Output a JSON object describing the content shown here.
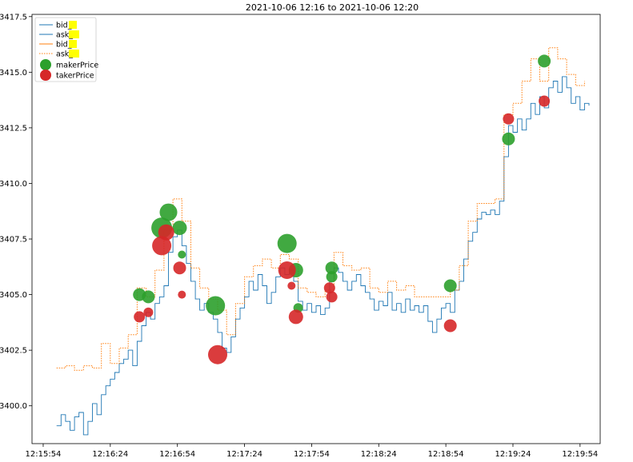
{
  "chart_data": {
    "type": "line",
    "title": "2021-10-06 12:16 to 2021-10-06 12:20",
    "xlabel": "",
    "ylabel": "",
    "ylim": [
      3398.3,
      3417.6
    ],
    "xlim": [
      "12:15:49",
      "12:20:03"
    ],
    "y_ticks": [
      "3400.0",
      "3402.5",
      "3405.0",
      "3407.5",
      "3410.0",
      "3412.5",
      "3415.0",
      "3417.5"
    ],
    "x_ticks": [
      "12:15:54",
      "12:16:24",
      "12:16:54",
      "12:17:24",
      "12:17:54",
      "12:18:24",
      "12:18:54",
      "12:19:24",
      "12:19:54"
    ],
    "grid": false,
    "legend_position": "top-left",
    "legend": [
      {
        "label": "bid_",
        "kind": "line",
        "color": "#1f77b4"
      },
      {
        "label": "ask_",
        "kind": "line",
        "color": "#1f77b4"
      },
      {
        "label": "bid_",
        "kind": "line",
        "color": "#ff7f0e"
      },
      {
        "label": "ask_",
        "kind": "line",
        "color": "#ff7f0e"
      },
      {
        "label": "makerPrice",
        "kind": "marker",
        "color": "#2ca02c"
      },
      {
        "label": "takerPrice",
        "kind": "marker",
        "color": "#d62728"
      }
    ],
    "series": [
      {
        "name": "bid_",
        "style": "solid",
        "color": "#1f77b4",
        "points": [
          [
            "12:16:00",
            3399.1
          ],
          [
            "12:16:02",
            3399.6
          ],
          [
            "12:16:04",
            3399.3
          ],
          [
            "12:16:06",
            3398.9
          ],
          [
            "12:16:08",
            3399.5
          ],
          [
            "12:16:10",
            3399.7
          ],
          [
            "12:16:12",
            3398.7
          ],
          [
            "12:16:14",
            3399.3
          ],
          [
            "12:16:16",
            3400.1
          ],
          [
            "12:16:18",
            3399.6
          ],
          [
            "12:16:20",
            3400.5
          ],
          [
            "12:16:22",
            3400.9
          ],
          [
            "12:16:24",
            3401.2
          ],
          [
            "12:16:26",
            3401.5
          ],
          [
            "12:16:28",
            3401.9
          ],
          [
            "12:16:30",
            3402.1
          ],
          [
            "12:16:32",
            3402.5
          ],
          [
            "12:16:34",
            3401.8
          ],
          [
            "12:16:36",
            3402.9
          ],
          [
            "12:16:38",
            3403.6
          ],
          [
            "12:16:40",
            3404.2
          ],
          [
            "12:16:42",
            3403.9
          ],
          [
            "12:16:44",
            3404.6
          ],
          [
            "12:16:46",
            3404.9
          ],
          [
            "12:16:48",
            3405.4
          ],
          [
            "12:16:50",
            3406.9
          ],
          [
            "12:16:52",
            3407.6
          ],
          [
            "12:16:54",
            3407.9
          ],
          [
            "12:16:56",
            3407.2
          ],
          [
            "12:16:58",
            3406.4
          ],
          [
            "12:17:00",
            3405.6
          ],
          [
            "12:17:02",
            3404.8
          ],
          [
            "12:17:04",
            3404.3
          ],
          [
            "12:17:06",
            3404.6
          ],
          [
            "12:17:08",
            3404.2
          ],
          [
            "12:17:10",
            3403.9
          ],
          [
            "12:17:12",
            3403.3
          ],
          [
            "12:17:14",
            3402.6
          ],
          [
            "12:17:16",
            3402.4
          ],
          [
            "12:17:18",
            3403.1
          ],
          [
            "12:17:20",
            3403.9
          ],
          [
            "12:17:22",
            3404.4
          ],
          [
            "12:17:24",
            3404.9
          ],
          [
            "12:17:26",
            3405.6
          ],
          [
            "12:17:28",
            3405.2
          ],
          [
            "12:17:30",
            3405.9
          ],
          [
            "12:17:32",
            3405.4
          ],
          [
            "12:17:34",
            3404.6
          ],
          [
            "12:17:36",
            3405.1
          ],
          [
            "12:17:38",
            3405.8
          ],
          [
            "12:17:40",
            3406.2
          ],
          [
            "12:17:42",
            3405.9
          ],
          [
            "12:17:44",
            3406.1
          ],
          [
            "12:17:46",
            3405.6
          ],
          [
            "12:17:48",
            3404.7
          ],
          [
            "12:17:50",
            3404.3
          ],
          [
            "12:17:52",
            3404.6
          ],
          [
            "12:17:54",
            3404.2
          ],
          [
            "12:17:56",
            3404.5
          ],
          [
            "12:17:58",
            3404.1
          ],
          [
            "12:18:00",
            3404.4
          ],
          [
            "12:18:02",
            3405.6
          ],
          [
            "12:18:04",
            3406.2
          ],
          [
            "12:18:06",
            3406.0
          ],
          [
            "12:18:08",
            3405.6
          ],
          [
            "12:18:10",
            3405.2
          ],
          [
            "12:18:12",
            3405.6
          ],
          [
            "12:18:14",
            3405.9
          ],
          [
            "12:18:16",
            3405.4
          ],
          [
            "12:18:18",
            3405.1
          ],
          [
            "12:18:20",
            3404.8
          ],
          [
            "12:18:22",
            3404.3
          ],
          [
            "12:18:24",
            3404.7
          ],
          [
            "12:18:26",
            3404.5
          ],
          [
            "12:18:28",
            3405.1
          ],
          [
            "12:18:30",
            3404.3
          ],
          [
            "12:18:32",
            3404.6
          ],
          [
            "12:18:34",
            3404.2
          ],
          [
            "12:18:36",
            3404.8
          ],
          [
            "12:18:38",
            3404.3
          ],
          [
            "12:18:40",
            3404.5
          ],
          [
            "12:18:42",
            3404.2
          ],
          [
            "12:18:44",
            3404.5
          ],
          [
            "12:18:46",
            3403.8
          ],
          [
            "12:18:48",
            3403.3
          ],
          [
            "12:18:50",
            3403.9
          ],
          [
            "12:18:52",
            3404.4
          ],
          [
            "12:18:54",
            3404.6
          ],
          [
            "12:18:56",
            3404.2
          ],
          [
            "12:18:58",
            3405.2
          ],
          [
            "12:19:00",
            3405.6
          ],
          [
            "12:19:02",
            3406.6
          ],
          [
            "12:19:04",
            3407.4
          ],
          [
            "12:19:06",
            3407.8
          ],
          [
            "12:19:08",
            3408.4
          ],
          [
            "12:19:10",
            3408.7
          ],
          [
            "12:19:12",
            3408.6
          ],
          [
            "12:19:14",
            3408.8
          ],
          [
            "12:19:16",
            3408.6
          ],
          [
            "12:19:18",
            3409.2
          ],
          [
            "12:19:20",
            3411.2
          ],
          [
            "12:19:22",
            3412.6
          ],
          [
            "12:19:24",
            3412.3
          ],
          [
            "12:19:26",
            3412.9
          ],
          [
            "12:19:28",
            3412.4
          ],
          [
            "12:19:30",
            3412.9
          ],
          [
            "12:19:32",
            3413.6
          ],
          [
            "12:19:34",
            3413.1
          ],
          [
            "12:19:36",
            3413.9
          ],
          [
            "12:19:38",
            3413.4
          ],
          [
            "12:19:40",
            3414.3
          ],
          [
            "12:19:42",
            3414.6
          ],
          [
            "12:19:44",
            3414.1
          ],
          [
            "12:19:46",
            3414.8
          ],
          [
            "12:19:48",
            3414.3
          ],
          [
            "12:19:50",
            3413.6
          ],
          [
            "12:19:52",
            3413.9
          ],
          [
            "12:19:54",
            3413.3
          ],
          [
            "12:19:56",
            3413.6
          ],
          [
            "12:19:58",
            3413.5
          ]
        ]
      },
      {
        "name": "ask_",
        "style": "dotted",
        "color": "#ff7f0e",
        "points": [
          [
            "12:16:00",
            3401.7
          ],
          [
            "12:16:04",
            3401.8
          ],
          [
            "12:16:08",
            3401.6
          ],
          [
            "12:16:12",
            3401.8
          ],
          [
            "12:16:16",
            3401.7
          ],
          [
            "12:16:20",
            3402.8
          ],
          [
            "12:16:24",
            3401.9
          ],
          [
            "12:16:28",
            3402.6
          ],
          [
            "12:16:32",
            3403.2
          ],
          [
            "12:16:36",
            3405.3
          ],
          [
            "12:16:40",
            3404.9
          ],
          [
            "12:16:44",
            3406.1
          ],
          [
            "12:16:48",
            3407.9
          ],
          [
            "12:16:52",
            3409.3
          ],
          [
            "12:16:56",
            3408.3
          ],
          [
            "12:17:00",
            3406.2
          ],
          [
            "12:17:04",
            3405.3
          ],
          [
            "12:17:08",
            3404.8
          ],
          [
            "12:17:12",
            3404.3
          ],
          [
            "12:17:16",
            3403.2
          ],
          [
            "12:17:20",
            3404.6
          ],
          [
            "12:17:24",
            3405.8
          ],
          [
            "12:17:28",
            3406.3
          ],
          [
            "12:17:32",
            3406.6
          ],
          [
            "12:17:36",
            3406.2
          ],
          [
            "12:17:40",
            3406.8
          ],
          [
            "12:17:44",
            3406.6
          ],
          [
            "12:17:48",
            3405.3
          ],
          [
            "12:17:52",
            3405.1
          ],
          [
            "12:17:56",
            3404.9
          ],
          [
            "12:18:00",
            3405.2
          ],
          [
            "12:18:04",
            3406.9
          ],
          [
            "12:18:08",
            3406.3
          ],
          [
            "12:18:12",
            3406.1
          ],
          [
            "12:18:16",
            3406.2
          ],
          [
            "12:18:20",
            3405.3
          ],
          [
            "12:18:24",
            3405.1
          ],
          [
            "12:18:28",
            3405.6
          ],
          [
            "12:18:32",
            3405.2
          ],
          [
            "12:18:36",
            3405.4
          ],
          [
            "12:18:40",
            3404.9
          ],
          [
            "12:18:44",
            3404.9
          ],
          [
            "12:18:48",
            3404.9
          ],
          [
            "12:18:52",
            3404.9
          ],
          [
            "12:18:56",
            3405.2
          ],
          [
            "12:19:00",
            3406.3
          ],
          [
            "12:19:04",
            3408.3
          ],
          [
            "12:19:08",
            3409.1
          ],
          [
            "12:19:12",
            3409.1
          ],
          [
            "12:19:16",
            3409.3
          ],
          [
            "12:19:20",
            3413.1
          ],
          [
            "12:19:24",
            3413.6
          ],
          [
            "12:19:28",
            3414.6
          ],
          [
            "12:19:32",
            3415.6
          ],
          [
            "12:19:36",
            3414.6
          ],
          [
            "12:19:40",
            3416.1
          ],
          [
            "12:19:44",
            3415.6
          ],
          [
            "12:19:48",
            3414.9
          ],
          [
            "12:19:52",
            3414.4
          ],
          [
            "12:19:56",
            3414.6
          ]
        ]
      }
    ],
    "maker_points": [
      {
        "x": "12:16:37",
        "y": 3405.0,
        "size": 8
      },
      {
        "x": "12:16:41",
        "y": 3404.9,
        "size": 8
      },
      {
        "x": "12:16:47",
        "y": 3408.0,
        "size": 13
      },
      {
        "x": "12:16:50",
        "y": 3408.7,
        "size": 11
      },
      {
        "x": "12:16:55",
        "y": 3408.0,
        "size": 9
      },
      {
        "x": "12:16:56",
        "y": 3406.8,
        "size": 5
      },
      {
        "x": "12:17:11",
        "y": 3404.5,
        "size": 12
      },
      {
        "x": "12:17:43",
        "y": 3407.3,
        "size": 12
      },
      {
        "x": "12:17:47",
        "y": 3406.1,
        "size": 9
      },
      {
        "x": "12:17:48",
        "y": 3404.4,
        "size": 6
      },
      {
        "x": "12:18:03",
        "y": 3406.2,
        "size": 8
      },
      {
        "x": "12:18:03",
        "y": 3405.8,
        "size": 7
      },
      {
        "x": "12:18:56",
        "y": 3405.4,
        "size": 8
      },
      {
        "x": "12:19:22",
        "y": 3412.0,
        "size": 8
      },
      {
        "x": "12:19:38",
        "y": 3415.5,
        "size": 8
      }
    ],
    "taker_points": [
      {
        "x": "12:16:37",
        "y": 3404.0,
        "size": 7
      },
      {
        "x": "12:16:41",
        "y": 3404.2,
        "size": 6
      },
      {
        "x": "12:16:47",
        "y": 3407.2,
        "size": 12
      },
      {
        "x": "12:16:49",
        "y": 3407.8,
        "size": 10
      },
      {
        "x": "12:16:55",
        "y": 3406.2,
        "size": 8
      },
      {
        "x": "12:16:56",
        "y": 3405.0,
        "size": 5
      },
      {
        "x": "12:17:12",
        "y": 3402.3,
        "size": 12
      },
      {
        "x": "12:17:43",
        "y": 3406.1,
        "size": 11
      },
      {
        "x": "12:17:45",
        "y": 3405.4,
        "size": 5
      },
      {
        "x": "12:17:47",
        "y": 3404.0,
        "size": 9
      },
      {
        "x": "12:18:02",
        "y": 3405.3,
        "size": 7
      },
      {
        "x": "12:18:03",
        "y": 3404.9,
        "size": 7
      },
      {
        "x": "12:18:56",
        "y": 3403.6,
        "size": 8
      },
      {
        "x": "12:19:22",
        "y": 3412.9,
        "size": 7
      },
      {
        "x": "12:19:38",
        "y": 3413.7,
        "size": 7
      }
    ]
  }
}
